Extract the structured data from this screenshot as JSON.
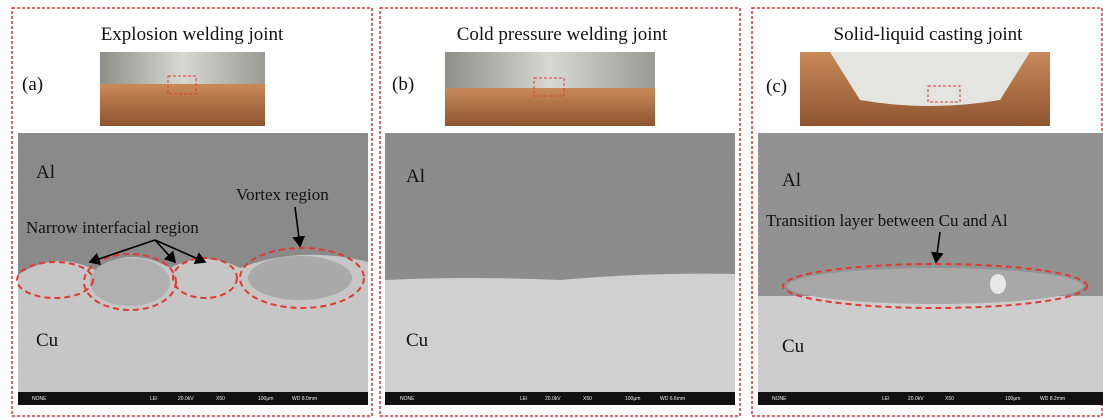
{
  "panels": [
    {
      "title": "Explosion welding joint",
      "label": "(a)",
      "top_label": "Al",
      "bottom_label": "Cu",
      "annotations": [
        "Narrow interfacial region",
        "Vortex region"
      ],
      "info_bar": [
        "NONE",
        "LEI",
        "20.0kV",
        "X50",
        "100μm",
        "WD 8.0mm"
      ]
    },
    {
      "title": "Cold pressure welding joint",
      "label": "(b)",
      "top_label": "Al",
      "bottom_label": "Cu",
      "info_bar": [
        "NONE",
        "LEI",
        "20.0kV",
        "X50",
        "100μm",
        "WD 6.6mm"
      ]
    },
    {
      "title": "Solid-liquid casting joint",
      "label": "(c)",
      "top_label": "Al",
      "bottom_label": "Cu",
      "annotations": [
        "Transition layer between Cu and Al"
      ],
      "info_bar": [
        "NONE",
        "LEI",
        "20.0kV",
        "X50",
        "100μm",
        "WD 8.2mm"
      ]
    }
  ]
}
